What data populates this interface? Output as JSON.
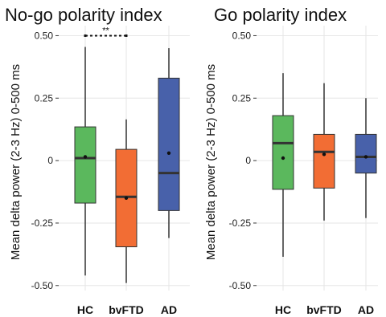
{
  "chart_data": [
    {
      "type": "box",
      "title": "No-go polarity index",
      "xlabel": "",
      "ylabel": "Mean delta power (2-3 Hz) 0-500 ms",
      "ylim": [
        -0.52,
        0.54
      ],
      "yticks": [
        0.5,
        0.25,
        0,
        -0.25,
        -0.5
      ],
      "ytick_labels": [
        "0.50",
        "0.25",
        "0",
        "-0.25",
        "-0.50"
      ],
      "grid": true,
      "categories": [
        "HC",
        "bvFTD",
        "AD"
      ],
      "colors": [
        "#5bb85d",
        "#f26d34",
        "#4861aa"
      ],
      "boxes": [
        {
          "min": -0.46,
          "q1": -0.17,
          "median": 0.01,
          "q3": 0.135,
          "max": 0.455,
          "mean": 0.015
        },
        {
          "min": -0.49,
          "q1": -0.345,
          "median": -0.145,
          "q3": 0.045,
          "max": 0.165,
          "mean": -0.15
        },
        {
          "min": -0.31,
          "q1": -0.2,
          "median": -0.05,
          "q3": 0.33,
          "max": 0.45,
          "mean": 0.03
        }
      ],
      "significance": {
        "from": 0,
        "to": 1,
        "y": 0.5,
        "label": "**"
      }
    },
    {
      "type": "box",
      "title": "Go polarity index",
      "xlabel": "",
      "ylabel": "Mean delta power (2-3 Hz) 0-500 ms",
      "ylim": [
        -0.52,
        0.54
      ],
      "yticks": [
        0.5,
        0.25,
        0,
        -0.25,
        -0.5
      ],
      "ytick_labels": [
        "0.50",
        "0.25",
        "0",
        "-0.25",
        "-0.50"
      ],
      "grid": true,
      "categories": [
        "HC",
        "bvFTD",
        "AD"
      ],
      "colors": [
        "#5bb85d",
        "#f26d34",
        "#4861aa"
      ],
      "boxes": [
        {
          "min": -0.385,
          "q1": -0.115,
          "median": 0.07,
          "q3": 0.18,
          "max": 0.35,
          "mean": 0.01
        },
        {
          "min": -0.24,
          "q1": -0.11,
          "median": 0.035,
          "q3": 0.105,
          "max": 0.31,
          "mean": 0.025
        },
        {
          "min": -0.23,
          "q1": -0.05,
          "median": 0.015,
          "q3": 0.105,
          "max": 0.25,
          "mean": 0.015
        }
      ]
    }
  ]
}
